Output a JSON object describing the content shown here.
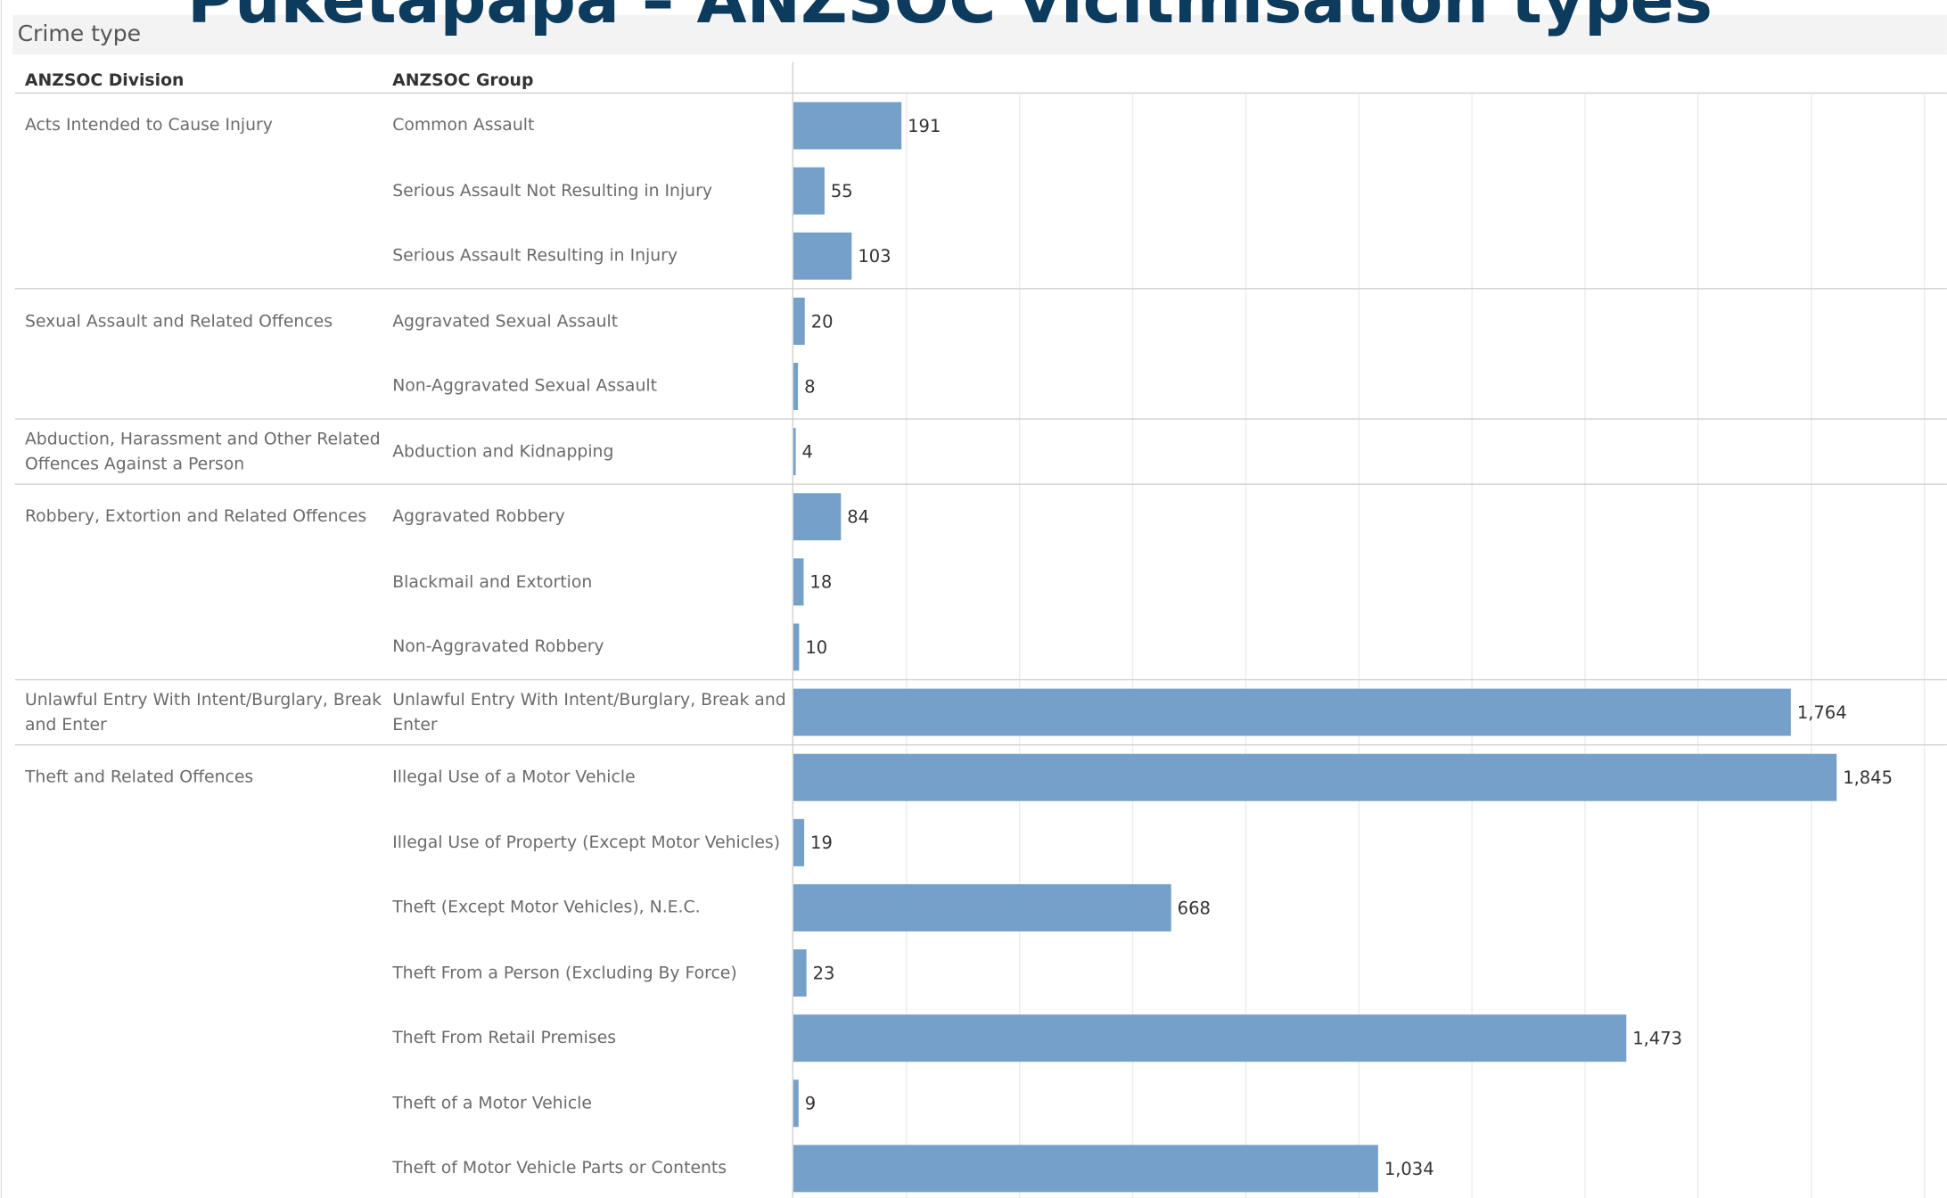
{
  "chart_data": {
    "type": "bar",
    "orientation": "horizontal",
    "title": "Puketapapa – ANZSOC vicitmisation types",
    "header": "Crime type",
    "column_headers": [
      "ANZSOC Division",
      "ANZSOC Group"
    ],
    "color": "#74a0c9",
    "grid": true,
    "xlim": [
      0,
      2040
    ],
    "xticks": [
      0,
      200,
      400,
      600,
      800,
      1000,
      1200,
      1400,
      1600,
      1800,
      2000
    ],
    "divisions": [
      {
        "name": "Acts Intended to Cause Injury",
        "groups": [
          "Common Assault",
          "Serious Assault Not Resulting in Injury",
          "Serious Assault Resulting in Injury"
        ],
        "values": [
          191,
          55,
          103
        ]
      },
      {
        "name": "Sexual Assault and Related Offences",
        "groups": [
          "Aggravated Sexual Assault",
          "Non-Aggravated Sexual Assault"
        ],
        "values": [
          20,
          8
        ]
      },
      {
        "name": "Abduction, Harassment and Other Related Offences Against a Person",
        "groups": [
          "Abduction and Kidnapping"
        ],
        "values": [
          4
        ]
      },
      {
        "name": "Robbery, Extortion and Related Offences",
        "groups": [
          "Aggravated Robbery",
          "Blackmail and Extortion",
          "Non-Aggravated Robbery"
        ],
        "values": [
          84,
          18,
          10
        ]
      },
      {
        "name": "Unlawful Entry With Intent/Burglary, Break and Enter",
        "groups": [
          "Unlawful Entry With Intent/Burglary, Break and Enter"
        ],
        "values": [
          1764
        ],
        "value_labels": [
          "1,764"
        ]
      },
      {
        "name": "Theft and Related Offences",
        "groups": [
          "Illegal Use of a Motor Vehicle",
          "Illegal Use of Property (Except Motor Vehicles)",
          "Theft (Except Motor Vehicles), N.E.C.",
          "Theft From a Person (Excluding By Force)",
          "Theft From Retail Premises",
          "Theft of a Motor Vehicle",
          "Theft of Motor Vehicle Parts or Contents"
        ],
        "values": [
          1845,
          19,
          668,
          23,
          1473,
          9,
          1034
        ],
        "value_labels": [
          "1,845",
          "19",
          "668",
          "23",
          "1,473",
          "9",
          "1,034"
        ]
      }
    ]
  }
}
